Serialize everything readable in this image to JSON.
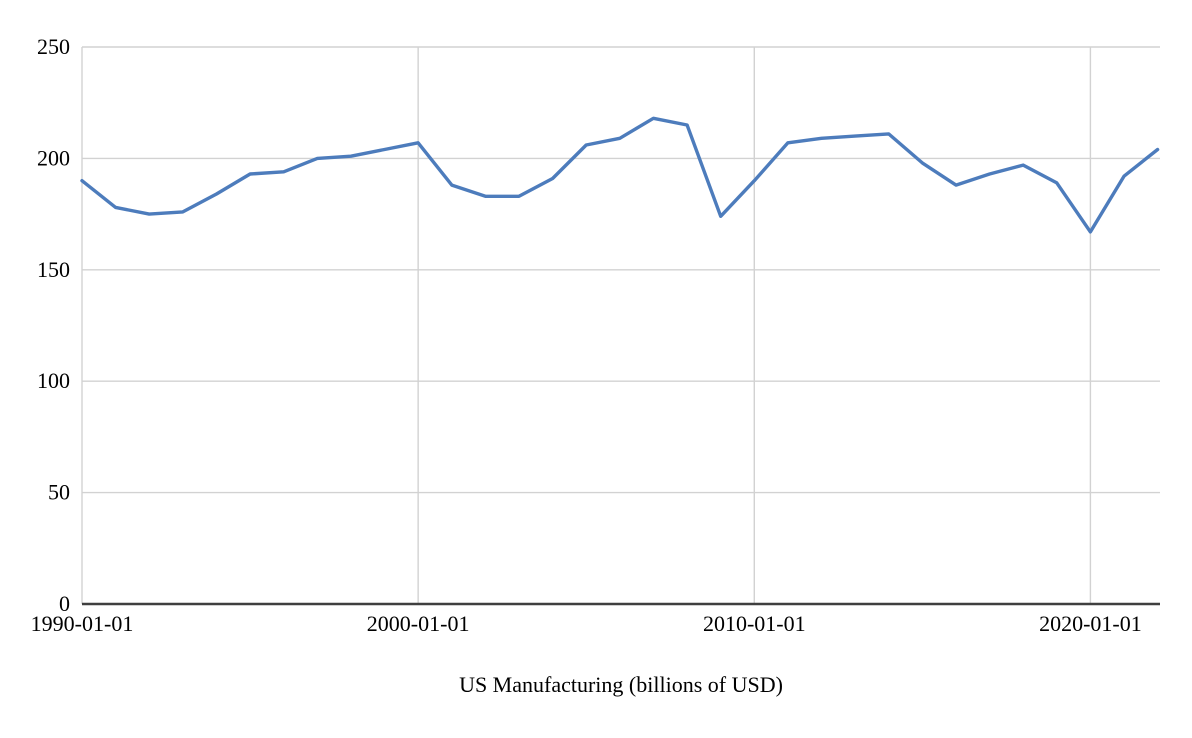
{
  "chart_data": {
    "type": "line",
    "title": "US Manufacturing (billions of USD)",
    "xlabel": "",
    "ylabel": "",
    "x": [
      1990,
      1991,
      1992,
      1993,
      1994,
      1995,
      1996,
      1997,
      1998,
      1999,
      2000,
      2001,
      2002,
      2003,
      2004,
      2005,
      2006,
      2007,
      2008,
      2009,
      2010,
      2011,
      2012,
      2013,
      2014,
      2015,
      2016,
      2017,
      2018,
      2019,
      2020,
      2021,
      2022
    ],
    "series": [
      {
        "name": "US Manufacturing",
        "values": [
          190,
          178,
          175,
          176,
          184,
          193,
          194,
          200,
          201,
          204,
          207,
          188,
          183,
          183,
          191,
          206,
          209,
          218,
          215,
          174,
          190,
          207,
          209,
          210,
          211,
          198,
          188,
          193,
          197,
          189,
          167,
          192,
          204
        ]
      }
    ],
    "ylim": [
      0,
      250
    ],
    "y_ticks": [
      0,
      50,
      100,
      150,
      200,
      250
    ],
    "y_tick_labels": [
      "0",
      "50",
      "100",
      "150",
      "200",
      "250"
    ],
    "x_tick_years": [
      1990,
      2000,
      2010,
      2020
    ],
    "x_tick_labels": [
      "1990-01-01",
      "2000-01-01",
      "2010-01-01",
      "2020-01-01"
    ],
    "grid": true,
    "legend_position": "none",
    "colors": {
      "line": "#4d7cbc",
      "grid": "#d2d2d2",
      "axis": "#3f3f3f",
      "text": "#000000",
      "background": "#ffffff"
    }
  }
}
